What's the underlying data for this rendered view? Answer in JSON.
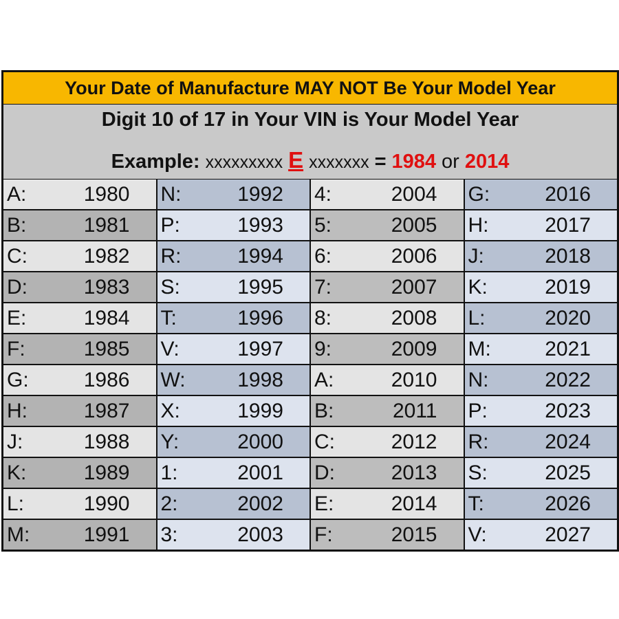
{
  "header": {
    "title": "Your Date of Manufacture MAY NOT Be Your Model Year",
    "subtitle": "Digit 10 of 17 in Your VIN is Your Model Year",
    "example": {
      "label": "Example:",
      "prefix": "xxxxxxxxx",
      "digit": "E",
      "suffix": "xxxxxxx",
      "equals": "=",
      "year1": 1984,
      "or": "or",
      "year2": 2014
    }
  },
  "table": {
    "columns": [
      [
        [
          "A:",
          1980
        ],
        [
          "B:",
          1981
        ],
        [
          "C:",
          1982
        ],
        [
          "D:",
          1983
        ],
        [
          "E:",
          1984
        ],
        [
          "F:",
          1985
        ],
        [
          "G:",
          1986
        ],
        [
          "H:",
          1987
        ],
        [
          "J:",
          1988
        ],
        [
          "K:",
          1989
        ],
        [
          "L:",
          1990
        ],
        [
          "M:",
          1991
        ]
      ],
      [
        [
          "N:",
          1992
        ],
        [
          "P:",
          1993
        ],
        [
          "R:",
          1994
        ],
        [
          "S:",
          1995
        ],
        [
          "T:",
          1996
        ],
        [
          "V:",
          1997
        ],
        [
          "W:",
          1998
        ],
        [
          "X:",
          1999
        ],
        [
          "Y:",
          2000
        ],
        [
          "1:",
          2001
        ],
        [
          "2:",
          2002
        ],
        [
          "3:",
          2003
        ]
      ],
      [
        [
          "4:",
          2004
        ],
        [
          "5:",
          2005
        ],
        [
          "6:",
          2006
        ],
        [
          "7:",
          2007
        ],
        [
          "8:",
          2008
        ],
        [
          "9:",
          2009
        ],
        [
          "A:",
          2010
        ],
        [
          "B:",
          2011
        ],
        [
          "C:",
          2012
        ],
        [
          "D:",
          2013
        ],
        [
          "E:",
          2014
        ],
        [
          "F:",
          2015
        ]
      ],
      [
        [
          "G:",
          2016
        ],
        [
          "H:",
          2017
        ],
        [
          "J:",
          2018
        ],
        [
          "K:",
          2019
        ],
        [
          "L:",
          2020
        ],
        [
          "M:",
          2021
        ],
        [
          "N:",
          2022
        ],
        [
          "P:",
          2023
        ],
        [
          "R:",
          2024
        ],
        [
          "S:",
          2025
        ],
        [
          "T:",
          2026
        ],
        [
          "V:",
          2027
        ]
      ]
    ]
  }
}
